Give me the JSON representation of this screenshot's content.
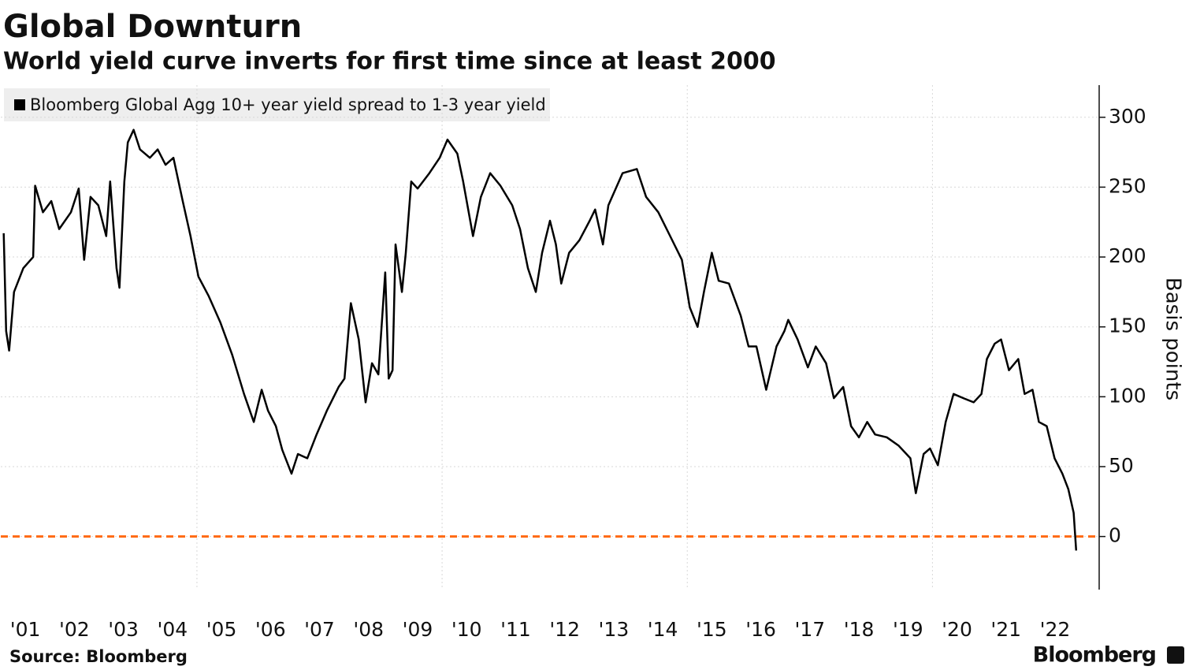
{
  "chart_data": {
    "type": "line",
    "title": "Global Downturn",
    "subtitle": "World yield curve inverts for first time since at least 2000",
    "y_label": "Basis points",
    "source": "Source: Bloomberg",
    "brand": "Bloomberg",
    "series": [
      {
        "name": "Bloomberg Global Agg 10+ year yield spread to 1-3 year yield",
        "color": "#000000",
        "x": [
          2001.06,
          2001.11,
          2001.17,
          2001.27,
          2001.46,
          2001.66,
          2001.7,
          2001.86,
          2002.03,
          2002.19,
          2002.43,
          2002.59,
          2002.7,
          2002.83,
          2002.99,
          2003.15,
          2003.23,
          2003.36,
          2003.42,
          2003.52,
          2003.59,
          2003.71,
          2003.84,
          2004.04,
          2004.2,
          2004.36,
          2004.52,
          2004.71,
          2004.87,
          2005.03,
          2005.24,
          2005.48,
          2005.72,
          2005.96,
          2006.16,
          2006.32,
          2006.45,
          2006.61,
          2006.74,
          2006.93,
          2007.06,
          2007.25,
          2007.44,
          2007.65,
          2007.89,
          2008.01,
          2008.14,
          2008.3,
          2008.44,
          2008.57,
          2008.7,
          2008.84,
          2008.91,
          2008.99,
          2009.05,
          2009.18,
          2009.26,
          2009.37,
          2009.5,
          2009.74,
          2009.95,
          2010.11,
          2010.31,
          2010.43,
          2010.63,
          2010.79,
          2010.98,
          2011.19,
          2011.43,
          2011.59,
          2011.75,
          2011.91,
          2012.04,
          2012.2,
          2012.32,
          2012.43,
          2012.59,
          2012.8,
          2013.01,
          2013.12,
          2013.28,
          2013.39,
          2013.68,
          2013.97,
          2014.16,
          2014.41,
          2014.65,
          2014.89,
          2015.05,
          2015.21,
          2015.34,
          2015.5,
          2015.64,
          2015.85,
          2016.09,
          2016.25,
          2016.41,
          2016.61,
          2016.82,
          2016.98,
          2017.06,
          2017.25,
          2017.46,
          2017.62,
          2017.83,
          2017.99,
          2018.18,
          2018.34,
          2018.5,
          2018.67,
          2018.83,
          2019.07,
          2019.31,
          2019.55,
          2019.66,
          2019.82,
          2019.95,
          2020.11,
          2020.27,
          2020.43,
          2020.63,
          2020.84,
          2021.0,
          2021.11,
          2021.27,
          2021.4,
          2021.56,
          2021.75,
          2021.88,
          2022.04,
          2022.17,
          2022.33,
          2022.49,
          2022.65,
          2022.77,
          2022.88,
          2022.93
        ],
        "values": [
          217,
          147,
          133,
          175,
          192,
          200,
          251,
          232,
          240,
          220,
          232,
          249,
          198,
          243,
          237,
          215,
          254,
          192,
          178,
          254,
          282,
          291,
          277,
          271,
          277,
          266,
          271,
          240,
          215,
          186,
          172,
          153,
          130,
          102,
          82,
          105,
          90,
          79,
          62,
          45,
          59,
          56,
          73,
          90,
          107,
          113,
          167,
          141,
          96,
          124,
          116,
          189,
          113,
          119,
          209,
          175,
          203,
          254,
          249,
          260,
          271,
          284,
          274,
          254,
          215,
          243,
          260,
          251,
          237,
          220,
          192,
          175,
          203,
          226,
          209,
          181,
          203,
          212,
          226,
          234,
          209,
          237,
          260,
          263,
          243,
          232,
          215,
          198,
          164,
          150,
          175,
          203,
          183,
          181,
          158,
          136,
          136,
          105,
          136,
          147,
          155,
          141,
          121,
          136,
          124,
          99,
          107,
          79,
          71,
          82,
          73,
          71,
          65,
          56,
          31,
          59,
          63,
          51,
          82,
          102,
          99,
          96,
          102,
          127,
          138,
          141,
          119,
          127,
          102,
          105,
          82,
          79,
          56,
          45,
          34,
          17,
          -10
        ]
      }
    ],
    "xlim": [
      2001,
      2023.4
    ],
    "xticks": [
      {
        "value": 2001,
        "label": "'01"
      },
      {
        "value": 2002,
        "label": "'02"
      },
      {
        "value": 2003,
        "label": "'03"
      },
      {
        "value": 2004,
        "label": "'04"
      },
      {
        "value": 2005,
        "label": "'05"
      },
      {
        "value": 2006,
        "label": "'06"
      },
      {
        "value": 2007,
        "label": "'07"
      },
      {
        "value": 2008,
        "label": "'08"
      },
      {
        "value": 2009,
        "label": "'09"
      },
      {
        "value": 2010,
        "label": "'10"
      },
      {
        "value": 2011,
        "label": "'11"
      },
      {
        "value": 2012,
        "label": "'12"
      },
      {
        "value": 2013,
        "label": "'13"
      },
      {
        "value": 2014,
        "label": "'14"
      },
      {
        "value": 2015,
        "label": "'15"
      },
      {
        "value": 2016,
        "label": "'16"
      },
      {
        "value": 2017,
        "label": "'17"
      },
      {
        "value": 2018,
        "label": "'18"
      },
      {
        "value": 2019,
        "label": "'19"
      },
      {
        "value": 2020,
        "label": "'20"
      },
      {
        "value": 2021,
        "label": "'21"
      },
      {
        "value": 2022,
        "label": "'22"
      }
    ],
    "xgrid": [
      2005,
      2010,
      2015,
      2020
    ],
    "ylim": [
      -38,
      323
    ],
    "yticks": [
      0,
      50,
      100,
      150,
      200,
      250,
      300
    ],
    "grid": true,
    "reference_line": {
      "value": 0,
      "color": "#ff6a13"
    }
  }
}
